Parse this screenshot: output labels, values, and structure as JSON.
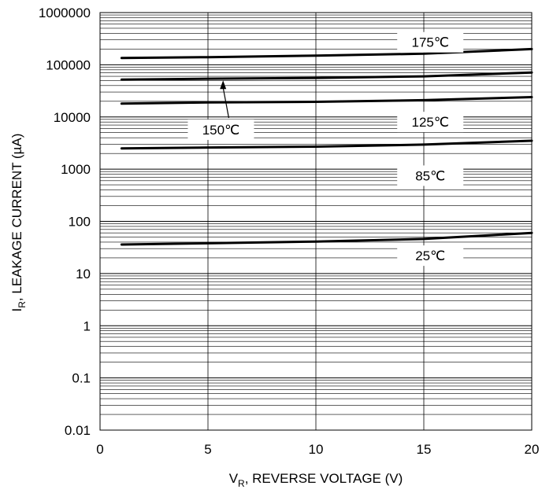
{
  "chart_data": {
    "type": "line",
    "title": "",
    "xlabel": {
      "main": "V",
      "sub": "R",
      "rest": ", REVERSE VOLTAGE (V)"
    },
    "ylabel": {
      "main": "I",
      "sub": "R",
      "rest": ", LEAKAGE CURRENT (µA)"
    },
    "xlim": [
      0,
      20
    ],
    "ylim": [
      0.01,
      1000000
    ],
    "yscale": "log",
    "grid": true,
    "x_ticks": [
      0,
      5,
      10,
      15,
      20
    ],
    "x_tick_labels": [
      "0",
      "5",
      "10",
      "15",
      "20"
    ],
    "y_ticks": [
      0.01,
      0.1,
      1,
      10,
      100,
      1000,
      10000,
      100000,
      1000000
    ],
    "y_tick_labels": [
      "0.01",
      "0.1",
      "1",
      "10",
      "100",
      "1000",
      "10000",
      "100000",
      "1000000"
    ],
    "series": [
      {
        "name": "175℃",
        "x": [
          1,
          5,
          10,
          15,
          20
        ],
        "values": [
          135000,
          140000,
          150000,
          163000,
          200000
        ]
      },
      {
        "name": "150℃",
        "x": [
          1,
          5,
          10,
          15,
          20
        ],
        "values": [
          52000,
          54000,
          56000,
          60000,
          71000
        ]
      },
      {
        "name": "125℃",
        "x": [
          1,
          5,
          10,
          15,
          20
        ],
        "values": [
          18000,
          19000,
          19500,
          21000,
          24000
        ]
      },
      {
        "name": "85℃",
        "x": [
          1,
          5,
          10,
          15,
          20
        ],
        "values": [
          2500,
          2600,
          2700,
          2950,
          3500
        ]
      },
      {
        "name": "25℃",
        "x": [
          1,
          5,
          10,
          15,
          20
        ],
        "values": [
          36,
          38,
          41,
          46,
          60
        ]
      }
    ],
    "annotations": [
      {
        "series": "175℃",
        "text": "175℃",
        "x": 15.3,
        "y": 270000
      },
      {
        "series": "150℃",
        "text": "150℃",
        "x": 5.6,
        "y": 5700,
        "arrow_to": {
          "x": 5.7,
          "y": 52000
        }
      },
      {
        "series": "125℃",
        "text": "125℃",
        "x": 15.3,
        "y": 8000
      },
      {
        "series": "85℃",
        "text": "85℃",
        "x": 15.3,
        "y": 750
      },
      {
        "series": "25℃",
        "text": "25℃",
        "x": 15.3,
        "y": 22
      }
    ]
  }
}
